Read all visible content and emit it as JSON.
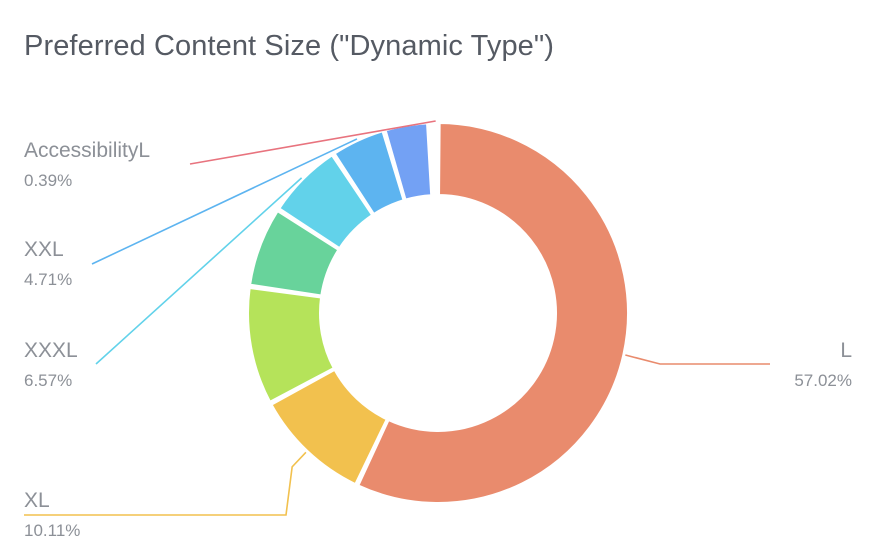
{
  "chart_data": {
    "type": "pie",
    "title": "Preferred Content Size (\"Dynamic Type\")",
    "donut": true,
    "slices": [
      {
        "label": "L",
        "value": 57.02,
        "value_text": "57.02%",
        "color": "#e98b6d",
        "labeled": true
      },
      {
        "label": "XL",
        "value": 10.11,
        "value_text": "10.11%",
        "color": "#f2c14e",
        "labeled": true
      },
      {
        "label": "",
        "value": 10.11,
        "value_text": "",
        "color": "#b5e35a",
        "labeled": false
      },
      {
        "label": "",
        "value": 6.9,
        "value_text": "",
        "color": "#68d39b",
        "labeled": false
      },
      {
        "label": "XXXL",
        "value": 6.57,
        "value_text": "6.57%",
        "color": "#62d2ea",
        "labeled": true
      },
      {
        "label": "XXL",
        "value": 4.71,
        "value_text": "4.71%",
        "color": "#5db4f0",
        "labeled": true
      },
      {
        "label": "",
        "value": 3.8,
        "value_text": "",
        "color": "#73a1f4",
        "labeled": false
      },
      {
        "label": "",
        "value": 0.39,
        "value_text": "",
        "color": "#c07cf2",
        "labeled": false
      },
      {
        "label": "AccessibilityL",
        "value": 0.39,
        "value_text": "0.39%",
        "color": "#e8737e",
        "labeled": true
      }
    ]
  }
}
